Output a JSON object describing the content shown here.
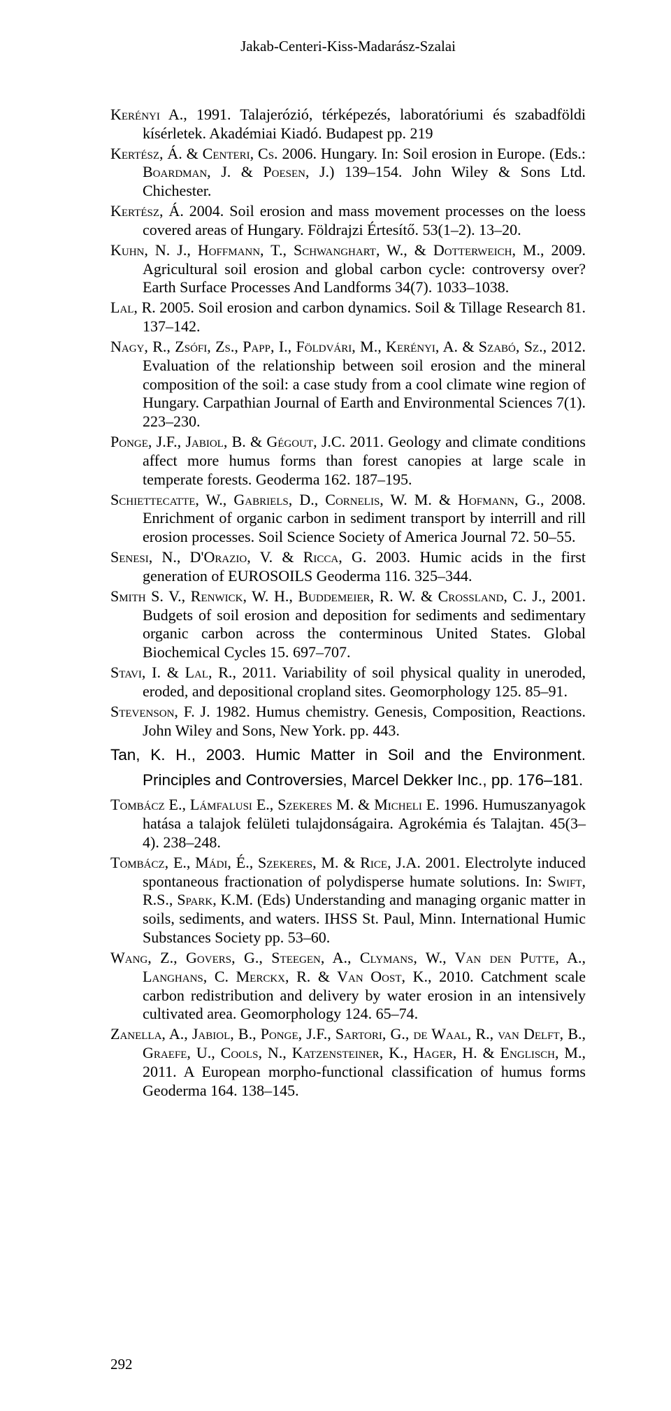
{
  "running_head": "Jakab-Centeri-Kiss-Madarász-Szalai",
  "page_number": "292",
  "refs": [
    {
      "authors_sc": "Kerényi A.",
      "rest": ", 1991. Talajerózió, térképezés, laboratóriumi és szabadföldi kísérletek. Akadémiai Kiadó. Budapest pp. 219"
    },
    {
      "authors_sc": "Kertész, Á. & Centeri, Cs.",
      "rest": " 2006. Hungary. In: Soil erosion in Europe. (Eds.: ",
      "authors_sc2": "Boardman, J. & Poesen, J.",
      "rest2": ") 139–154. John Wiley & Sons Ltd. Chichester."
    },
    {
      "authors_sc": "Kertész, Á.",
      "rest": " 2004. Soil erosion and mass movement processes on the loess covered areas of Hungary. Földrajzi Értesítő. 53(1–2). 13–20."
    },
    {
      "authors_sc": "Kuhn, N. J., Hoffmann, T., Schwanghart, W., & Dotterweich, M.",
      "rest": ", 2009. Agricultural soil erosion and global carbon cycle: controversy over? Earth Surface Processes And Landforms 34(7). 1033–1038."
    },
    {
      "authors_sc": "Lal, R.",
      "rest": " 2005. Soil erosion and carbon dynamics. Soil & Tillage Research 81. 137–142."
    },
    {
      "authors_sc": "Nagy, R., Zsófi, Zs., Papp, I., Földvári, M., Kerényi, A. & Szabó, Sz.",
      "rest": ", 2012. Evaluation of the relationship between soil erosion and the mineral composition of the soil: a case study from a cool climate wine region of Hungary. Carpathian Journal of Earth and Environmental Sciences 7(1). 223–230."
    },
    {
      "authors_sc": "Ponge, J.F., Jabiol, B. & Gégout, J.C.",
      "rest": " 2011. Geology and climate conditions affect more humus forms than forest canopies at large scale in temperate forests. Geoderma 162. 187–195."
    },
    {
      "authors_sc": "Schiettecatte, W., Gabriels, D., Cornelis, W. M. & Hofmann, G.",
      "rest": ", 2008. Enrichment of organic carbon in sediment transport by interrill and rill erosion processes. Soil Science Society of America Journal 72. 50–55."
    },
    {
      "authors_sc": "Senesi, N., D'Orazio, V. & Ricca, G.",
      "rest": " 2003. Humic acids in the first generation of EUROSOILS Geoderma 116. 325–344."
    },
    {
      "authors_sc": "Smith S. V., Renwick, W. H., Buddemeier, R. W. & Crossland, C. J.",
      "rest": ", 2001. Budgets of soil erosion and deposition for sediments and sedimentary organic carbon across the conterminous United States. Global Biochemical Cycles 15. 697–707."
    },
    {
      "authors_sc": "Stavi, I. & Lal, R.",
      "rest": ", 2011. Variability of soil physical quality in uneroded, eroded, and depositional cropland sites. Geomorphology 125. 85–91."
    },
    {
      "authors_sc": "Stevenson, F. J.",
      "rest": " 1982. Humus chemistry. Genesis, Composition, Reactions. John Wiley and Sons, New York. pp. 443."
    },
    {
      "tan": true,
      "authors_sc": "Tan, K. H.",
      "rest": ", 2003. Humic Matter in Soil and the Environment. Principles and Controversies, Marcel Dekker Inc., pp. 176–181."
    },
    {
      "authors_sc": "Tombácz E., Lámfalusi E., Szekeres M. & Micheli E.",
      "rest": " 1996. Humuszanyagok hatása a talajok felületi tulajdonságaira. Agrokémia és Talajtan. 45(3–4). 238–248."
    },
    {
      "authors_sc": "Tombácz, E., Mádi, É., Szekeres, M. & Rice, J.A.",
      "rest": " 2001. Electrolyte induced spontaneous fractionation of polydisperse humate solutions. In: ",
      "authors_sc2": "Swift, R.S., Spark, K.M.",
      "rest2": " (Eds) Understanding and managing organic matter in soils, sediments, and waters. IHSS St. Paul, Minn. International Humic Substances Society pp. 53–60."
    },
    {
      "authors_sc": "Wang, Z., Govers, G., Steegen, A., Clymans, W., Van den Putte, A., Langhans, C. Merckx, R. & Van Oost, K.",
      "rest": ", 2010. Catchment scale carbon redistribution and delivery by water erosion in an intensively cultivated area. Geomorphology 124. 65–74."
    },
    {
      "authors_sc": "Zanella, A., Jabiol, B., Ponge, J.F., Sartori, G., de Waal, R., van Delft, B., Graefe, U., Cools, N., Katzensteiner, K., Hager, H. & Englisch, M.",
      "rest": ", 2011. A European morpho-functional classification of humus forms Geoderma 164. 138–145."
    }
  ]
}
